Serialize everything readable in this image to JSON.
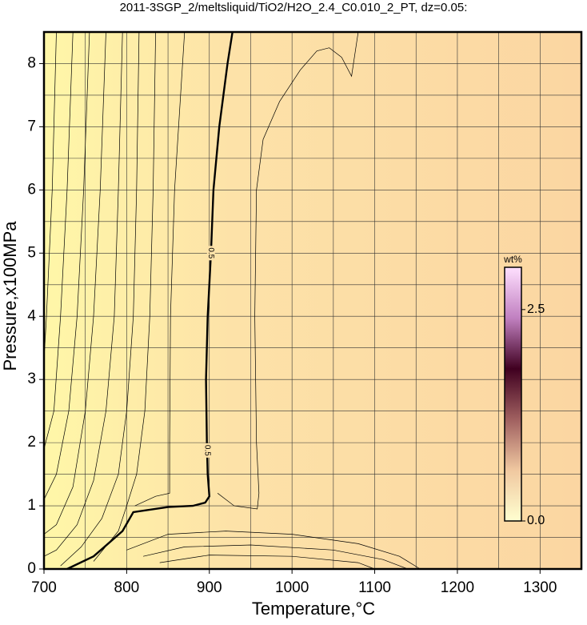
{
  "chart_data": {
    "type": "contour",
    "title": "2011-3SGP_2/meltsliquid/TiO2/H2O_2.4_C0.010_2_PT, dz=0.05:",
    "x_label": "Temperature,°C",
    "y_label": "Pressure,x100MPa",
    "xlim": [
      700,
      1350
    ],
    "ylim": [
      0,
      8.5
    ],
    "xticks": [
      700,
      800,
      900,
      1000,
      1100,
      1200,
      1300
    ],
    "yticks": [
      0,
      1,
      2,
      3,
      4,
      5,
      6,
      7,
      8
    ],
    "xminorticks": [
      750,
      850,
      950,
      1050,
      1150,
      1250
    ],
    "yminorticks": [
      0.5,
      1.5,
      2.5,
      3.5,
      4.5,
      5.5,
      6.5,
      7.5
    ],
    "grid": true,
    "contours": [
      {
        "level": 0.5,
        "bold": true,
        "x": [
          728,
          760,
          795,
          808,
          850,
          880,
          895,
          900,
          898,
          897,
          896,
          898,
          902,
          905,
          912,
          922,
          928
        ],
        "y": [
          0,
          0.2,
          0.6,
          0.9,
          0.98,
          1.0,
          1.05,
          1.15,
          1.5,
          2,
          3,
          4,
          5,
          6,
          7,
          8,
          8.5
        ]
      },
      {
        "x": [
          715,
          710,
          703,
          700
        ],
        "y": [
          8.5,
          6,
          4,
          3.3
        ]
      },
      {
        "x": [
          735,
          728,
          720,
          712,
          700
        ],
        "y": [
          8.5,
          6,
          4,
          2.5,
          1.9
        ]
      },
      {
        "x": [
          755,
          748,
          740,
          730,
          715,
          700
        ],
        "y": [
          8.5,
          6,
          4,
          2.5,
          1.5,
          1.1
        ]
      },
      {
        "x": [
          775,
          768,
          760,
          750,
          735,
          715,
          700
        ],
        "y": [
          8.5,
          6,
          4,
          2.5,
          1.3,
          0.7,
          0.55
        ]
      },
      {
        "x": [
          795,
          790,
          785,
          775,
          760,
          740,
          715,
          700
        ],
        "y": [
          8.5,
          6,
          4,
          2.5,
          1.4,
          0.7,
          0.3,
          0.2
        ]
      },
      {
        "x": [
          815,
          812,
          808,
          800,
          790,
          770,
          745,
          720
        ],
        "y": [
          8.5,
          6,
          4,
          2.5,
          1.5,
          0.8,
          0.35,
          0.05
        ]
      },
      {
        "x": [
          835,
          832,
          828,
          822,
          812,
          800,
          790,
          760
        ],
        "y": [
          8.5,
          6,
          4,
          2.5,
          1.5,
          1.0,
          0.6,
          0.12
        ]
      },
      {
        "x": [
          870,
          858,
          853,
          852,
          852,
          835,
          810
        ],
        "y": [
          8.5,
          6,
          4,
          2,
          1.2,
          1.15,
          1.0
        ]
      },
      {
        "x": [
          1080,
          1072,
          1060,
          1045,
          1030,
          1010,
          985,
          965,
          957,
          955,
          957,
          960,
          958,
          930,
          910
        ],
        "y": [
          8.5,
          7.8,
          8.1,
          8.25,
          8.2,
          7.9,
          7.4,
          6.8,
          6,
          4,
          2,
          1.2,
          0.95,
          1.0,
          1.2
        ]
      },
      {
        "x": [
          800,
          850,
          920,
          1000,
          1080,
          1130,
          1155
        ],
        "y": [
          0.3,
          0.55,
          0.6,
          0.55,
          0.4,
          0.2,
          0
        ]
      },
      {
        "x": [
          820,
          870,
          950,
          1050,
          1110,
          1140
        ],
        "y": [
          0.2,
          0.35,
          0.38,
          0.3,
          0.15,
          0
        ]
      },
      {
        "x": [
          840,
          900,
          1000,
          1080,
          1100
        ],
        "y": [
          0.1,
          0.22,
          0.2,
          0.1,
          0
        ]
      }
    ],
    "colorbar": {
      "label": "wt%",
      "lim": [
        0,
        3
      ],
      "ticks": [
        {
          "value": 0,
          "label": "0.0"
        },
        2.5
      ],
      "colors": [
        "#ffffd0",
        "#f0c8a0",
        "#a06060",
        "#400020",
        "#c080c0",
        "#ffe0ff"
      ]
    }
  }
}
